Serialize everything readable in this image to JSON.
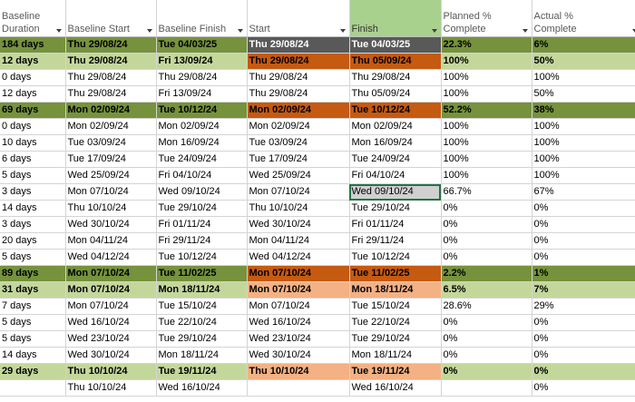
{
  "headers": [
    {
      "label": "Baseline\nDuration",
      "highlight": false
    },
    {
      "label": "Baseline Start",
      "highlight": false
    },
    {
      "label": "Baseline Finish",
      "highlight": false
    },
    {
      "label": "Start",
      "highlight": false
    },
    {
      "label": "Finish",
      "highlight": true
    },
    {
      "label": "Planned %\nComplete",
      "highlight": false
    },
    {
      "label": "Actual %\nComplete",
      "highlight": false
    }
  ],
  "rows": [
    {
      "style": "s-top",
      "summary": true,
      "cells": [
        "184 days",
        "Thu 29/08/24",
        "Tue 04/03/25",
        "Thu 29/08/24",
        "Tue 04/03/25",
        "22.3%",
        "6%"
      ]
    },
    {
      "style": "s-light",
      "summary": true,
      "cells": [
        "12 days",
        "Thu 29/08/24",
        "Fri 13/09/24",
        "Thu 29/08/24",
        "Thu 05/09/24",
        "100%",
        "50%"
      ]
    },
    {
      "style": "",
      "summary": false,
      "cells": [
        "0 days",
        "Thu 29/08/24",
        "Thu 29/08/24",
        "Thu 29/08/24",
        "Thu 29/08/24",
        "100%",
        "100%"
      ]
    },
    {
      "style": "",
      "summary": false,
      "cells": [
        "12 days",
        "Thu 29/08/24",
        "Fri 13/09/24",
        "Thu 29/08/24",
        "Thu 05/09/24",
        "100%",
        "50%"
      ]
    },
    {
      "style": "s-dark",
      "summary": true,
      "cells": [
        "69 days",
        "Mon 02/09/24",
        "Tue 10/12/24",
        "Mon 02/09/24",
        "Tue 10/12/24",
        "52.2%",
        "38%"
      ]
    },
    {
      "style": "",
      "summary": false,
      "cells": [
        "0 days",
        "Mon 02/09/24",
        "Mon 02/09/24",
        "Mon 02/09/24",
        "Mon 02/09/24",
        "100%",
        "100%"
      ]
    },
    {
      "style": "",
      "summary": false,
      "cells": [
        "10 days",
        "Tue 03/09/24",
        "Mon 16/09/24",
        "Tue 03/09/24",
        "Mon 16/09/24",
        "100%",
        "100%"
      ]
    },
    {
      "style": "",
      "summary": false,
      "cells": [
        "6 days",
        "Tue 17/09/24",
        "Tue 24/09/24",
        "Tue 17/09/24",
        "Tue 24/09/24",
        "100%",
        "100%"
      ]
    },
    {
      "style": "",
      "summary": false,
      "cells": [
        "5 days",
        "Wed 25/09/24",
        "Fri 04/10/24",
        "Wed 25/09/24",
        "Fri 04/10/24",
        "100%",
        "100%"
      ]
    },
    {
      "style": "",
      "summary": false,
      "selected": 4,
      "cells": [
        "3 days",
        "Mon 07/10/24",
        "Wed 09/10/24",
        "Mon 07/10/24",
        "Wed 09/10/24",
        "66.7%",
        "67%"
      ]
    },
    {
      "style": "",
      "summary": false,
      "cells": [
        "14 days",
        "Thu 10/10/24",
        "Tue 29/10/24",
        "Thu 10/10/24",
        "Tue 29/10/24",
        "0%",
        "0%"
      ]
    },
    {
      "style": "",
      "summary": false,
      "cells": [
        "3 days",
        "Wed 30/10/24",
        "Fri 01/11/24",
        "Wed 30/10/24",
        "Fri 01/11/24",
        "0%",
        "0%"
      ]
    },
    {
      "style": "",
      "summary": false,
      "cells": [
        "20 days",
        "Mon 04/11/24",
        "Fri 29/11/24",
        "Mon 04/11/24",
        "Fri 29/11/24",
        "0%",
        "0%"
      ]
    },
    {
      "style": "",
      "summary": false,
      "cells": [
        "5 days",
        "Wed 04/12/24",
        "Tue 10/12/24",
        "Wed 04/12/24",
        "Tue 10/12/24",
        "0%",
        "0%"
      ]
    },
    {
      "style": "s-dark",
      "summary": true,
      "cells": [
        "89 days",
        "Mon 07/10/24",
        "Tue 11/02/25",
        "Mon 07/10/24",
        "Tue 11/02/25",
        "2.2%",
        "1%"
      ]
    },
    {
      "style": "s-light2",
      "summary": true,
      "cells": [
        "31 days",
        "Mon 07/10/24",
        "Mon 18/11/24",
        "Mon 07/10/24",
        "Mon 18/11/24",
        "6.5%",
        "7%"
      ]
    },
    {
      "style": "",
      "summary": false,
      "cells": [
        "7 days",
        "Mon 07/10/24",
        "Tue 15/10/24",
        "Mon 07/10/24",
        "Tue 15/10/24",
        "28.6%",
        "29%"
      ]
    },
    {
      "style": "",
      "summary": false,
      "cells": [
        "5 days",
        "Wed 16/10/24",
        "Tue 22/10/24",
        "Wed 16/10/24",
        "Tue 22/10/24",
        "0%",
        "0%"
      ]
    },
    {
      "style": "",
      "summary": false,
      "cells": [
        "5 days",
        "Wed 23/10/24",
        "Tue 29/10/24",
        "Wed 23/10/24",
        "Tue 29/10/24",
        "0%",
        "0%"
      ]
    },
    {
      "style": "",
      "summary": false,
      "cells": [
        "14 days",
        "Wed 30/10/24",
        "Mon 18/11/24",
        "Wed 30/10/24",
        "Mon 18/11/24",
        "0%",
        "0%"
      ]
    },
    {
      "style": "s-light2",
      "summary": true,
      "cells": [
        "29 days",
        "Thu 10/10/24",
        "Tue 19/11/24",
        "Thu 10/10/24",
        "Tue 19/11/24",
        "0%",
        "0%"
      ]
    },
    {
      "style": "",
      "summary": false,
      "cells": [
        "",
        "Thu 10/10/24",
        "Wed 16/10/24",
        "",
        "Wed 16/10/24",
        "",
        "0%"
      ]
    }
  ],
  "colors": {
    "header_highlight": "#a9d18e",
    "summary_dark": "#76923c",
    "summary_light": "#c4d79b",
    "orange": "#c55a11",
    "orange_light": "#f4b183",
    "grey": "#595959"
  }
}
